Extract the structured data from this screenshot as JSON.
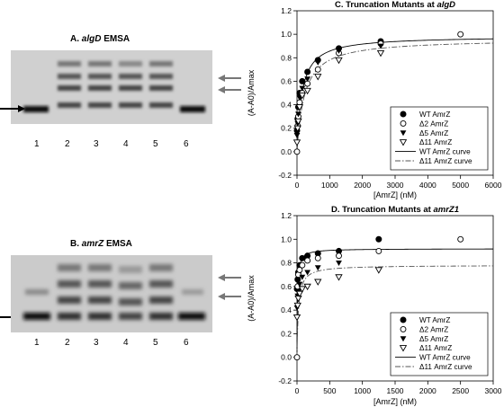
{
  "panels": {
    "A": {
      "label": "A.",
      "title_italic": "algD",
      "title_rest": " EMSA",
      "lanes": [
        "1",
        "2",
        "3",
        "4",
        "5",
        "6"
      ]
    },
    "B": {
      "label": "B.",
      "title_italic": "amrZ",
      "title_rest": " EMSA",
      "lanes": [
        "1",
        "2",
        "3",
        "4",
        "5",
        "6"
      ]
    }
  },
  "chart_data": [
    {
      "type": "scatter",
      "title_prefix": "C.  Truncation Mutants at ",
      "title_italic": "algD",
      "xlabel": "[AmrZ] (nM)",
      "ylabel": "(A-A0)/Amax",
      "xlim": [
        0,
        6000
      ],
      "ylim": [
        -0.2,
        1.2
      ],
      "xticks": [
        0,
        1000,
        2000,
        3000,
        4000,
        5000,
        6000
      ],
      "yticks": [
        -0.2,
        0.0,
        0.2,
        0.4,
        0.6,
        0.8,
        1.0,
        1.2
      ],
      "ytick_labels": [
        "-0.2",
        "0.0",
        "0.2",
        "0.4",
        "0.6",
        "0.8",
        "1.0",
        "1.2"
      ],
      "legend_position": "bottom-right",
      "series": [
        {
          "name": "WT AmrZ",
          "marker": "filled-circle",
          "x": [
            0,
            20,
            40,
            80,
            160,
            320,
            640,
            1280,
            2560
          ],
          "y": [
            0.18,
            0.28,
            0.38,
            0.5,
            0.6,
            0.68,
            0.78,
            0.88,
            0.94
          ]
        },
        {
          "name": "Δ2 AmrZ",
          "marker": "open-circle",
          "x": [
            0,
            20,
            40,
            80,
            160,
            320,
            640,
            1280,
            2560,
            5000
          ],
          "y": [
            0.0,
            0.22,
            0.3,
            0.42,
            0.5,
            0.58,
            0.7,
            0.84,
            0.92,
            1.0
          ]
        },
        {
          "name": "Δ5 AmrZ",
          "marker": "filled-triangle",
          "x": [
            0,
            20,
            40,
            80,
            160,
            320,
            640,
            1280,
            2560
          ],
          "y": [
            0.14,
            0.24,
            0.32,
            0.46,
            0.54,
            0.62,
            0.76,
            0.86,
            0.9
          ]
        },
        {
          "name": "Δ11 AmrZ",
          "marker": "open-triangle",
          "x": [
            0,
            20,
            40,
            80,
            160,
            320,
            640,
            1280,
            2560
          ],
          "y": [
            0.08,
            0.2,
            0.26,
            0.38,
            0.48,
            0.52,
            0.64,
            0.78,
            0.84
          ]
        }
      ],
      "curves": [
        {
          "name": "WT AmrZ curve",
          "style": "solid",
          "Bmax": 0.985,
          "Kd": 150
        },
        {
          "name": "Δ11 AmrZ curve",
          "style": "dash-dot",
          "Bmax": 0.96,
          "Kd": 230
        }
      ]
    },
    {
      "type": "scatter",
      "title_prefix": "D.  Truncation Mutants at ",
      "title_italic": "amrZ1",
      "xlabel": "[AmrZ] (nM)",
      "ylabel": "(A-A0)/Amax",
      "xlim": [
        0,
        3000
      ],
      "ylim": [
        -0.2,
        1.2
      ],
      "xticks": [
        0,
        500,
        1000,
        1500,
        2000,
        2500,
        3000
      ],
      "yticks": [
        -0.2,
        0.0,
        0.2,
        0.4,
        0.6,
        0.8,
        1.0,
        1.2
      ],
      "ytick_labels": [
        "-0.2",
        "0.0",
        "0.2",
        "0.4",
        "0.6",
        "0.8",
        "1.0",
        "1.2"
      ],
      "legend_position": "bottom-right",
      "series": [
        {
          "name": "WT AmrZ",
          "marker": "filled-circle",
          "x": [
            0,
            10,
            20,
            40,
            80,
            160,
            320,
            640,
            1250
          ],
          "y": [
            0.58,
            0.66,
            0.72,
            0.78,
            0.84,
            0.86,
            0.88,
            0.9,
            1.0
          ]
        },
        {
          "name": "Δ2 AmrZ",
          "marker": "open-circle",
          "x": [
            0,
            10,
            20,
            40,
            80,
            160,
            320,
            640,
            1250,
            2500
          ],
          "y": [
            0.0,
            0.6,
            0.7,
            0.74,
            0.78,
            0.82,
            0.84,
            0.86,
            0.9,
            1.0
          ]
        },
        {
          "name": "Δ5 AmrZ",
          "marker": "filled-triangle",
          "x": [
            0,
            10,
            20,
            40,
            80,
            160,
            320,
            640
          ],
          "y": [
            0.42,
            0.52,
            0.56,
            0.62,
            0.68,
            0.72,
            0.76,
            0.8
          ]
        },
        {
          "name": "Δ11 AmrZ",
          "marker": "open-triangle",
          "x": [
            0,
            10,
            20,
            40,
            80,
            160,
            320,
            640,
            1250
          ],
          "y": [
            0.34,
            0.44,
            0.5,
            0.54,
            0.58,
            0.6,
            0.64,
            0.68,
            0.74
          ]
        }
      ],
      "curves": [
        {
          "name": "WT AmrZ curve",
          "style": "solid",
          "Bmax": 0.92,
          "Kd": 8
        },
        {
          "name": "Δ11 AmrZ curve",
          "style": "dash-dot",
          "Bmax": 0.78,
          "Kd": 22
        }
      ]
    }
  ]
}
